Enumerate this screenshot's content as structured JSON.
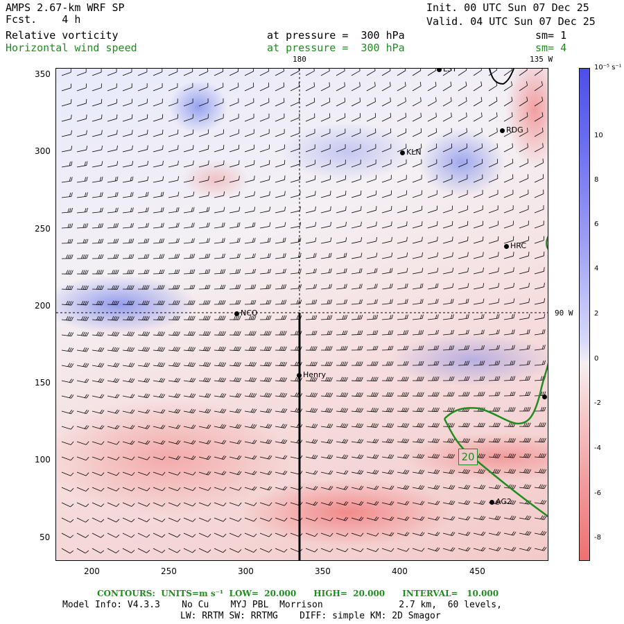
{
  "header": {
    "model": "AMPS 2.67-km WRF SP",
    "init": "Init. 00 UTC Sun 07 Dec 25",
    "fcst": "Fcst.    4 h",
    "valid": "Valid. 04 UTC Sun 07 Dec 25",
    "field1": "Relative vorticity",
    "field1_level": "at pressure =  300 hPa",
    "field1_sm": "sm= 1",
    "field2": "Horizontal wind speed",
    "field2_level": "at pressure =  300 hPa",
    "field2_sm": "sm= 4"
  },
  "map": {
    "top_labels": [
      "180",
      "135 W"
    ],
    "right_label": "90 W",
    "x_ticks": [
      "200",
      "250",
      "300",
      "350",
      "400",
      "450"
    ],
    "y_ticks": [
      "350",
      "300",
      "250",
      "200",
      "150",
      "100",
      "50"
    ],
    "stations": [
      "LSY",
      "RDG",
      "KLN",
      "HRC",
      "NCO",
      "Henry",
      "AG2"
    ],
    "contour_label": "20"
  },
  "colorbar": {
    "units": "10⁻⁵ s⁻¹",
    "labels": [
      "10",
      "8",
      "6",
      "4",
      "2",
      "0",
      "-2",
      "-4",
      "-6",
      "-8"
    ]
  },
  "footer": {
    "contours": "CONTOURS:  UNITS=m s⁻¹  LOW=  20.000      HIGH=  20.000      INTERVAL=   10.000",
    "model_info": "Model Info: V4.3.3    No Cu    MYJ PBL  Morrison              2.7 km,  60 levels,",
    "model_info2": "LW: RRTM SW: RRTMG    DIFF: simple KM: 2D Smagor"
  },
  "colors": {
    "contour": "#1f8c1f",
    "positive": "#4c4ee8",
    "negative": "#ee7070"
  }
}
